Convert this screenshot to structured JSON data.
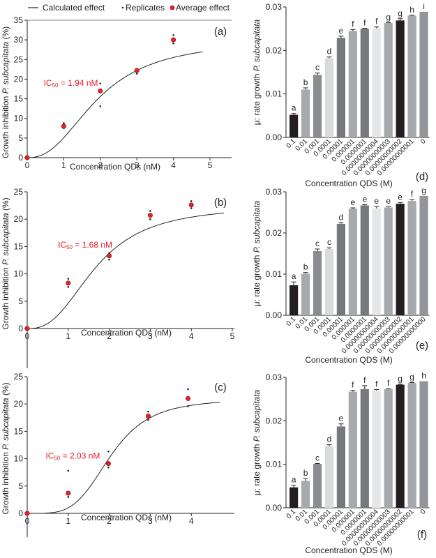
{
  "legend": {
    "calculated": "Calculated effect",
    "replicates": "Replicates",
    "average": "Average effect"
  },
  "colors": {
    "average_marker": "#e8202a",
    "ic50_text": "#e8202a",
    "axis": "#222222"
  },
  "chart_data": [
    {
      "id": "a",
      "type": "scatter",
      "panel_label": "(a)",
      "xlabel": "Concentration QDs (nM)",
      "ylabel": "Growth inhibition P. subcapitata (%)",
      "ylabel_parts": [
        "Growth inhibition ",
        "P. subcapitata",
        " (%)"
      ],
      "xlim": [
        0,
        5
      ],
      "ylim": [
        0,
        35
      ],
      "xticks": [
        0,
        1,
        2,
        3,
        4,
        5
      ],
      "yticks": [
        0,
        5,
        10,
        15,
        20,
        25,
        30,
        35
      ],
      "annotation": {
        "text": "IC",
        "sub": "50",
        "rest": " = 1.94 nM",
        "x": 0.45,
        "y": 19
      },
      "average": [
        [
          0,
          0
        ],
        [
          1,
          8
        ],
        [
          2,
          17
        ],
        [
          3,
          22.2
        ],
        [
          4,
          30
        ]
      ],
      "replicates": [
        [
          1,
          8.8
        ],
        [
          1,
          7.5
        ],
        [
          2,
          18.9
        ],
        [
          2,
          13.1
        ],
        [
          3,
          22.5
        ],
        [
          3,
          21.4
        ],
        [
          4,
          31.2
        ],
        [
          4,
          29.1
        ]
      ],
      "curve": {
        "model": "hill",
        "top": 30,
        "ec50": 1.94,
        "hill": 2.4,
        "x_end": 4.8
      }
    },
    {
      "id": "b",
      "type": "scatter",
      "panel_label": "(b)",
      "xlabel": "Concentration QDs (nM)",
      "ylabel": "Growth inhibition P. subcapitata (%)",
      "ylabel_parts": [
        "Growth inhibition ",
        "P. subcapitata",
        " (%)"
      ],
      "xlim": [
        0,
        5
      ],
      "ylim": [
        0,
        25
      ],
      "xticks": [
        0,
        1,
        2,
        3,
        4,
        5
      ],
      "yticks": [
        0,
        5,
        10,
        15,
        20,
        25
      ],
      "annotation": {
        "text": "IC",
        "sub": "50",
        "rest": " = 1.68 nM",
        "x": 0.75,
        "y": 15.3
      },
      "average": [
        [
          0,
          0
        ],
        [
          1,
          8.3
        ],
        [
          2,
          13.3
        ],
        [
          3,
          20.7
        ],
        [
          4,
          22.6
        ]
      ],
      "replicates": [
        [
          1,
          9.1
        ],
        [
          1,
          7.6
        ],
        [
          2,
          13.8
        ],
        [
          2,
          12.6
        ],
        [
          3,
          21.5
        ],
        [
          3,
          20.0
        ],
        [
          4,
          23.3
        ],
        [
          4,
          22.0
        ]
      ],
      "curve": {
        "model": "hill",
        "top": 22.5,
        "ec50": 1.68,
        "hill": 2.6,
        "x_end": 4.8
      }
    },
    {
      "id": "c",
      "type": "scatter",
      "panel_label": "(c)",
      "xlabel": "Concentration QDs (nM)",
      "ylabel": "Growth inhibition P. subcapitata (%)",
      "ylabel_parts": [
        "Growth inhibition ",
        "P. subcapitata",
        " (%)"
      ],
      "xlim": [
        0,
        5
      ],
      "ylim": [
        0,
        25
      ],
      "xticks": [
        0,
        1,
        2,
        3,
        4
      ],
      "yticks": [
        0,
        5,
        10,
        15,
        20,
        25
      ],
      "annotation": {
        "text": "IC",
        "sub": "50",
        "rest": " = 2.03 nM",
        "x": 0.45,
        "y": 10.5
      },
      "average": [
        [
          0,
          0
        ],
        [
          1,
          3.7
        ],
        [
          1.98,
          9.1
        ],
        [
          2.95,
          17.8
        ],
        [
          3.92,
          21
        ]
      ],
      "replicates": [
        [
          1,
          7.8
        ],
        [
          1,
          3.0
        ],
        [
          1.98,
          11.3
        ],
        [
          1.98,
          8.4
        ],
        [
          2.95,
          18.6
        ],
        [
          2.95,
          17.1
        ],
        [
          3.92,
          22.7
        ],
        [
          3.92,
          19.6
        ]
      ],
      "curve": {
        "model": "hill",
        "top": 20.9,
        "ec50": 2.03,
        "hill": 4.2,
        "x_start": 0.4,
        "x_end": 4.7
      }
    },
    {
      "id": "d",
      "type": "bar",
      "panel_label": "(d)",
      "xlabel": "Concentration QDS (M)",
      "ylabel": "μ: rate growth P. subcapitata",
      "ylabel_parts": [
        "μ: rate growth ",
        "P. subcapitata"
      ],
      "ylim": [
        0,
        0.03
      ],
      "yticks": [
        "0.00",
        "0.01",
        "0.02",
        "0.03"
      ],
      "categories": [
        "0.1",
        "0.01",
        "0.001",
        "0.0001",
        "0.00001",
        "0.000001",
        "0.0000001",
        "0.00000000004",
        "0.00000000003",
        "0.00000000002",
        "0.00000000001",
        "0"
      ],
      "values": [
        0.0052,
        0.011,
        0.0144,
        0.0182,
        0.0229,
        0.0245,
        0.025,
        0.0251,
        0.0263,
        0.0269,
        0.028,
        0.0289
      ],
      "errors": [
        0.0003,
        0.0004,
        0.0004,
        0.0003,
        0.0004,
        0.0003,
        0.0001,
        0.0003,
        0.0001,
        0.0004,
        0.0001,
        0
      ],
      "letters": [
        "a",
        "b",
        "c",
        "d",
        "e",
        "f",
        "f",
        "f",
        "g",
        "g",
        "h",
        "i"
      ],
      "bar_colors": [
        "#231f20",
        "#a7a9ac",
        "#8a8c8f",
        "#d9dadb",
        "#77787b",
        "#a7a9ac",
        "#77787b",
        "#e6e7e8",
        "#a7a9ac",
        "#231f20",
        "#a7a9ac",
        "#939598"
      ]
    },
    {
      "id": "e",
      "type": "bar",
      "panel_label": "(e)",
      "xlabel": "Concentration QDS (M)",
      "ylabel": "μ: rate growth P. subcapitata",
      "ylabel_parts": [
        "μ: rate growth ",
        "P. subcapitata"
      ],
      "ylim": [
        0,
        0.03
      ],
      "yticks": [
        "0.00",
        "0.01",
        "0.02",
        "0.03"
      ],
      "categories": [
        "0.1",
        "0.01",
        "0.001",
        "0.0001",
        "0.00001",
        "0.000001",
        "0.0000001",
        "0.00000000004",
        "0.00000000003",
        "0.00000000002",
        "0.00000000001",
        "0.00000000000"
      ],
      "values": [
        0.0073,
        0.0101,
        0.0156,
        0.0161,
        0.0222,
        0.0259,
        0.0267,
        0.026,
        0.0262,
        0.0271,
        0.0278,
        0.029
      ],
      "errors": [
        0.0008,
        0.0003,
        0.0005,
        0.0003,
        0.0003,
        0.0002,
        0.0002,
        0.0004,
        0.0002,
        0.0003,
        0.0003,
        0
      ],
      "letters": [
        "a",
        "b",
        "c",
        "c",
        "d",
        "e",
        "e",
        "e",
        "e",
        "e",
        "f",
        "g"
      ],
      "bar_colors": [
        "#231f20",
        "#a7a9ac",
        "#8a8c8f",
        "#d9dadb",
        "#77787b",
        "#a7a9ac",
        "#77787b",
        "#e6e7e8",
        "#a7a9ac",
        "#231f20",
        "#a7a9ac",
        "#939598"
      ]
    },
    {
      "id": "f",
      "type": "bar",
      "panel_label": "(f)",
      "xlabel": "Concentration QDS (M)",
      "ylabel": "μ: rate growth P. subcapitata",
      "ylabel_parts": [
        "μ: rate growth ",
        "P. subcapitata"
      ],
      "ylim": [
        0,
        0.03
      ],
      "yticks": [
        "0.00",
        "0.01",
        "0.02",
        "0.03"
      ],
      "categories": [
        "0.1",
        "0.01",
        "0.001",
        "0.0001",
        "0.00001",
        "0.000001",
        "0.0000001",
        "0.00000000004",
        "0.00000000003",
        "0.00000000002",
        "0.00000000001",
        "0"
      ],
      "values": [
        0.0047,
        0.0062,
        0.0101,
        0.0142,
        0.0187,
        0.0267,
        0.0273,
        0.027,
        0.0273,
        0.0283,
        0.0287,
        0.0291
      ],
      "errors": [
        0.0005,
        0.0005,
        0.0001,
        0.0003,
        0.0006,
        0.0003,
        0.0008,
        0.0002,
        0.0001,
        0.0001,
        0.0001,
        0
      ],
      "letters": [
        "a",
        "b",
        "c",
        "d",
        "e",
        "f",
        "f",
        "f",
        "f",
        "g",
        "g",
        "h"
      ],
      "bar_colors": [
        "#231f20",
        "#a7a9ac",
        "#8a8c8f",
        "#d9dadb",
        "#77787b",
        "#a7a9ac",
        "#77787b",
        "#e6e7e8",
        "#a7a9ac",
        "#231f20",
        "#a7a9ac",
        "#939598"
      ]
    }
  ]
}
